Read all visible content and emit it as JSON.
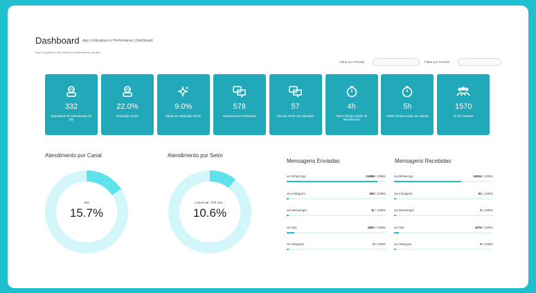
{
  "header": {
    "title": "Dashboard",
    "breadcrumb": "App | Indicadores e Performance | Dashboard",
    "subtitle": "Aqui Os gráficos Vão mostrar os atendimento ao Bus"
  },
  "filters": {
    "filter1_label": "Filtrar por Período",
    "filter1_placeholder": "",
    "filter2_label": "Filtrar por Período",
    "filter2_placeholder": ""
  },
  "cards": [
    {
      "icon": "agent-icon",
      "value": "332",
      "label": "Quantidade de Atendimento por Dia"
    },
    {
      "icon": "agent-icon",
      "value": "22.0%",
      "label": "Retenção do Bot"
    },
    {
      "icon": "sparkle-icon",
      "value": "9.0%",
      "label": "Média de Satisfação média"
    },
    {
      "icon": "chat-icon",
      "value": "578",
      "label": "Atendimentos Finalizados"
    },
    {
      "icon": "chat-icon",
      "value": "57",
      "label": "Taxa de Atend. por Operador"
    },
    {
      "icon": "timer-icon",
      "value": "4h",
      "label": "TMCA (Tempo médio de atendimento)"
    },
    {
      "icon": "timer-icon",
      "value": "5h",
      "label": "TMEE (Tempo médio de espera)"
    },
    {
      "icon": "users-icon",
      "value": "1570",
      "label": "Nº de Contatos"
    }
  ],
  "canal": {
    "title": "Atendimento por Canal",
    "label": "Site",
    "value": "15.7%",
    "percent": 15.7
  },
  "setor": {
    "title": "Atendimento por Setor",
    "label": "Comercial - Pré Ven...",
    "value": "10.6%",
    "percent": 10.6
  },
  "enviadas": {
    "title": "Mensagens Enviadas",
    "rows": [
      {
        "name": "via WhatsApp",
        "count": "21888",
        "total": "/ 23961",
        "fraction": 0.913
      },
      {
        "name": "via Instagram",
        "count": "254",
        "total": "/ 23961",
        "fraction": 0.011
      },
      {
        "name": "via Messenger",
        "count": "11",
        "total": "/ 23961",
        "fraction": 0.0005
      },
      {
        "name": "via Site",
        "count": "1801",
        "total": "/ 23961",
        "fraction": 0.075
      },
      {
        "name": "via Telegram",
        "count": "0",
        "total": "/ 23961",
        "fraction": 0
      }
    ]
  },
  "recebidas": {
    "title": "Mensagens Recebidas",
    "rows": [
      {
        "name": "via WhatsApp",
        "count": "14914",
        "total": "/ 21901",
        "fraction": 0.681
      },
      {
        "name": "via Instagram",
        "count": "51",
        "total": "/ 21901",
        "fraction": 0.002
      },
      {
        "name": "via Messenger",
        "count": "3",
        "total": "/ 21901",
        "fraction": 0.0001
      },
      {
        "name": "via Site",
        "count": "1076",
        "total": "/ 21901",
        "fraction": 0.049
      },
      {
        "name": "via Telegram",
        "count": "0",
        "total": "/ 21901",
        "fraction": 0
      }
    ]
  },
  "colors": {
    "accent": "#20bfd0",
    "card": "#21a9b9",
    "donut_light": "#d2f6fa",
    "donut_dark": "#5ee2ec"
  }
}
